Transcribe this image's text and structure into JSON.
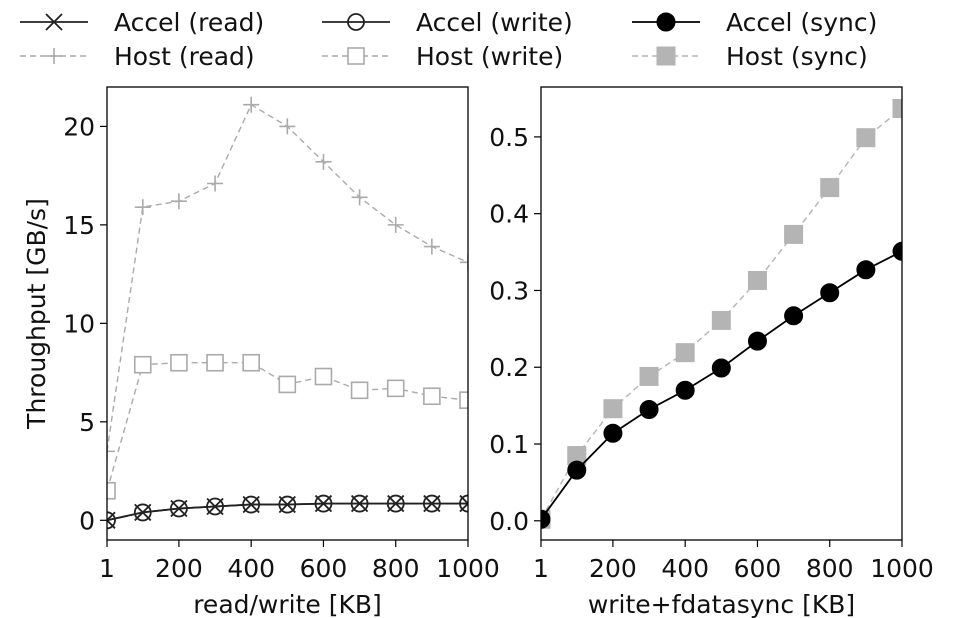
{
  "legend": [
    {
      "label": "Accel (read)",
      "marker": "x",
      "color": "#222222",
      "dash": "solid"
    },
    {
      "label": "Accel (write)",
      "marker": "circle-open",
      "color": "#222222",
      "dash": "solid"
    },
    {
      "label": "Accel (sync)",
      "marker": "circle-filled",
      "color": "#000000",
      "dash": "solid"
    },
    {
      "label": "Host (read)",
      "marker": "plus",
      "color": "#aaaaaa",
      "dash": "dashed"
    },
    {
      "label": "Host (write)",
      "marker": "square-open",
      "color": "#aaaaaa",
      "dash": "dashed"
    },
    {
      "label": "Host (sync)",
      "marker": "square-filled",
      "color": "#b4b4b4",
      "dash": "dashed"
    }
  ],
  "chart_data": [
    {
      "type": "line",
      "xlabel": "read/write [KB]",
      "ylabel": "Throughput [GB/s]",
      "xlim": [
        1,
        1000
      ],
      "ylim": [
        -1.0,
        22.0
      ],
      "x_ticks": [
        1,
        200,
        400,
        600,
        800,
        1000
      ],
      "x_tick_labels": [
        "1",
        "200",
        "400",
        "600",
        "800",
        "1000"
      ],
      "y_ticks": [
        0,
        5,
        10,
        15,
        20
      ],
      "y_tick_labels": [
        "0",
        "5",
        "10",
        "15",
        "20"
      ],
      "grid": false,
      "x": [
        1,
        100,
        200,
        300,
        400,
        500,
        600,
        700,
        800,
        900,
        1000
      ],
      "series": [
        {
          "name": "Host (read)",
          "values": [
            3.5,
            15.9,
            16.2,
            17.1,
            21.1,
            20.0,
            18.2,
            16.4,
            15.0,
            13.9,
            13.1
          ]
        },
        {
          "name": "Host (write)",
          "values": [
            1.5,
            7.9,
            8.0,
            8.0,
            8.0,
            6.9,
            7.3,
            6.6,
            6.7,
            6.3,
            6.1
          ]
        },
        {
          "name": "Accel (read)",
          "values": [
            0.0,
            0.4,
            0.6,
            0.7,
            0.8,
            0.8,
            0.85,
            0.85,
            0.85,
            0.85,
            0.85
          ]
        },
        {
          "name": "Accel (write)",
          "values": [
            0.0,
            0.4,
            0.6,
            0.7,
            0.8,
            0.8,
            0.85,
            0.85,
            0.85,
            0.85,
            0.85
          ]
        }
      ]
    },
    {
      "type": "line",
      "xlabel": "write+fdatasync [KB]",
      "ylabel": "",
      "xlim": [
        1,
        1000
      ],
      "ylim": [
        -0.025,
        0.565
      ],
      "x_ticks": [
        1,
        200,
        400,
        600,
        800,
        1000
      ],
      "x_tick_labels": [
        "1",
        "200",
        "400",
        "600",
        "800",
        "1000"
      ],
      "y_ticks": [
        0.0,
        0.1,
        0.2,
        0.3,
        0.4,
        0.5
      ],
      "y_tick_labels": [
        "0.0",
        "0.1",
        "0.2",
        "0.3",
        "0.4",
        "0.5"
      ],
      "grid": false,
      "x": [
        1,
        100,
        200,
        300,
        400,
        500,
        600,
        700,
        800,
        900,
        1000
      ],
      "series": [
        {
          "name": "Host (sync)",
          "values": [
            0.002,
            0.085,
            0.146,
            0.188,
            0.219,
            0.261,
            0.313,
            0.373,
            0.434,
            0.499,
            0.537
          ]
        },
        {
          "name": "Accel (sync)",
          "values": [
            0.002,
            0.066,
            0.114,
            0.145,
            0.17,
            0.199,
            0.234,
            0.267,
            0.297,
            0.327,
            0.351
          ]
        }
      ]
    }
  ]
}
